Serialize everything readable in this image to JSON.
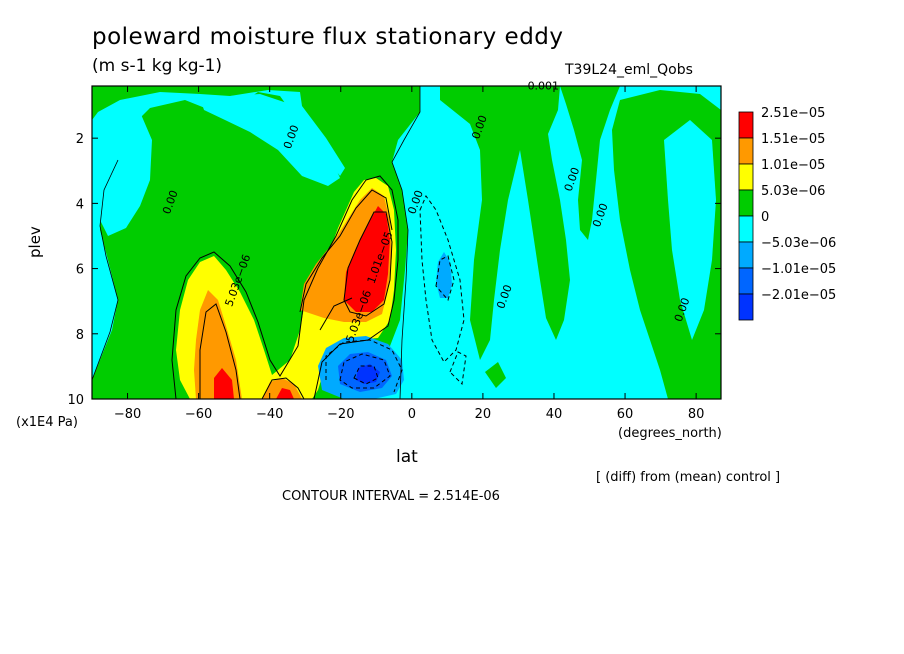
{
  "title": "poleward moisture flux stationary eddy",
  "units": "(m s-1 kg kg-1)",
  "run_label": "T39L24_eml_Qobs",
  "note": "[ (diff) from (mean) control ]",
  "contour_interval": "CONTOUR INTERVAL = 2.514E-06",
  "colors": {
    "c25": "#ff0000",
    "c15": "#ff9900",
    "c10": "#ffff00",
    "c05": "#00cc00",
    "c00": "#00ffff",
    "cn5": "#00aaff",
    "cn10": "#0066ff",
    "cn20": "#0033ff"
  },
  "chart_data": {
    "type": "heatmap",
    "title": "poleward moisture flux stationary eddy",
    "xlabel": "lat",
    "x_units": "(degrees_north)",
    "ylabel": "plev",
    "y_units": "(x1E4 Pa)",
    "xlim": [
      -90,
      87
    ],
    "ylim": [
      10,
      0.4
    ],
    "y_inverted": true,
    "x_ticks": [
      -80,
      -60,
      -40,
      -20,
      0,
      20,
      40,
      60,
      80
    ],
    "x_tick_labels": [
      "−80",
      "−60",
      "−40",
      "−20",
      "0",
      "20",
      "40",
      "60",
      "80"
    ],
    "y_ticks": [
      2,
      4,
      6,
      8,
      10
    ],
    "y_tick_labels": [
      "2",
      "4",
      "6",
      "8",
      "10"
    ],
    "legend": {
      "placement": "right",
      "labels": [
        "2.51e−05",
        "1.51e−05",
        "1.01e−05",
        "5.03e−06",
        "0",
        "−5.03e−06",
        "−1.01e−05",
        "−2.01e−05"
      ],
      "color_keys": [
        "c25",
        "c15",
        "c10",
        "c05",
        "c00",
        "cn5",
        "cn10",
        "cn20"
      ]
    },
    "contour_labels": [
      {
        "text": "0.001",
        "lat": 37,
        "plev": 0.5
      },
      {
        "text": "0.00",
        "lat": -67,
        "plev": 4.0
      },
      {
        "text": "0.00",
        "lat": -33,
        "plev": 2.0
      },
      {
        "text": "0.00",
        "lat": 20,
        "plev": 1.7
      },
      {
        "text": "0.00",
        "lat": 46,
        "plev": 3.3
      },
      {
        "text": "0.00",
        "lat": 54,
        "plev": 4.4
      },
      {
        "text": "0.00",
        "lat": 27,
        "plev": 6.9
      },
      {
        "text": "0.00",
        "lat": 77,
        "plev": 7.3
      },
      {
        "text": "0.00",
        "lat": 2,
        "plev": 4.0
      },
      {
        "text": "5.03e−06",
        "lat": -48,
        "plev": 6.4
      },
      {
        "text": "1.01e−05",
        "lat": -8,
        "plev": 5.7
      },
      {
        "text": "5.03e−06",
        "lat": -14,
        "plev": 7.5
      }
    ]
  }
}
